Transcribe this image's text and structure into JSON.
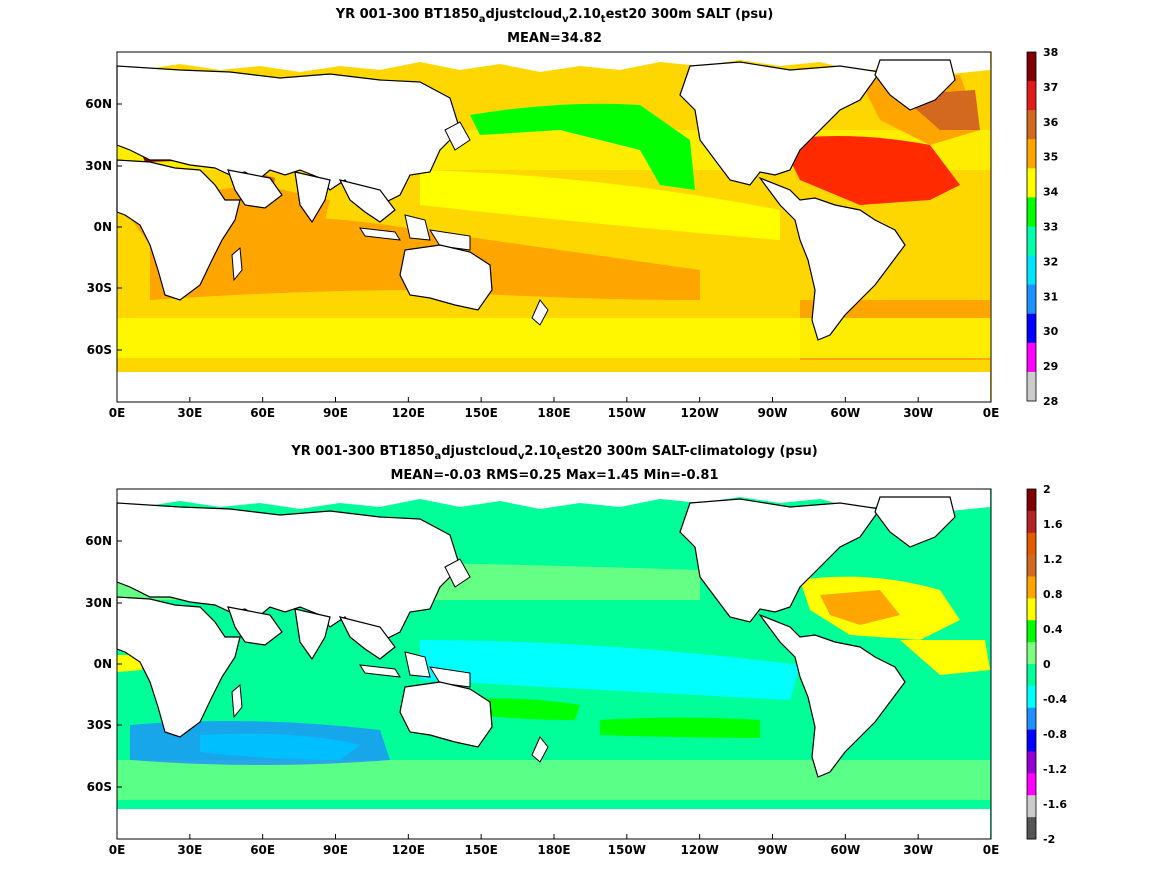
{
  "panels": [
    {
      "title_parts": [
        "YR 001-300 BT1850",
        "a",
        "djustcloud",
        "v",
        "2.10",
        "t",
        "est20 300m SALT (psu)"
      ],
      "stats_line": "MEAN=34.82",
      "x_ticks": [
        "0E",
        "30E",
        "60E",
        "90E",
        "120E",
        "150E",
        "180E",
        "150W",
        "120W",
        "90W",
        "60W",
        "30W",
        "0E"
      ],
      "y_ticks": [
        "60N",
        "30N",
        "0N",
        "30S",
        "60S"
      ],
      "colorbar": {
        "labels": [
          "38",
          "37",
          "36",
          "35",
          "34",
          "33",
          "32",
          "31",
          "30",
          "29",
          "28"
        ],
        "colors": [
          "#7f0000",
          "#e31a1c",
          "#d2691e",
          "#ffa500",
          "#ffff00",
          "#00ff00",
          "#00ffaa",
          "#00e5ff",
          "#1e90ff",
          "#0000ff",
          "#ff00ff",
          "#cccccc"
        ]
      }
    },
    {
      "title_parts": [
        "YR 001-300 BT1850",
        "a",
        "djustcloud",
        "v",
        "2.10",
        "t",
        "est20 300m SALT-climatology (psu)"
      ],
      "stats_line": "MEAN=-0.03   RMS=0.25   Max=1.45   Min=-0.81",
      "x_ticks": [
        "0E",
        "30E",
        "60E",
        "90E",
        "120E",
        "150E",
        "180E",
        "150W",
        "120W",
        "90W",
        "60W",
        "30W",
        "0E"
      ],
      "y_ticks": [
        "60N",
        "30N",
        "0N",
        "30S",
        "60S"
      ],
      "colorbar": {
        "labels": [
          "2",
          "1.6",
          "1.2",
          "0.8",
          "0.4",
          "0",
          "-0.4",
          "-0.8",
          "-1.2",
          "-1.6",
          "-2"
        ],
        "colors": [
          "#7f0000",
          "#b22222",
          "#e35b00",
          "#d2691e",
          "#ffa500",
          "#ffff00",
          "#00ff00",
          "#7fff7f",
          "#00ff99",
          "#00ffff",
          "#1e90ff",
          "#0000ff",
          "#9400d3",
          "#ff00ff",
          "#cccccc",
          "#555555"
        ]
      }
    }
  ]
}
